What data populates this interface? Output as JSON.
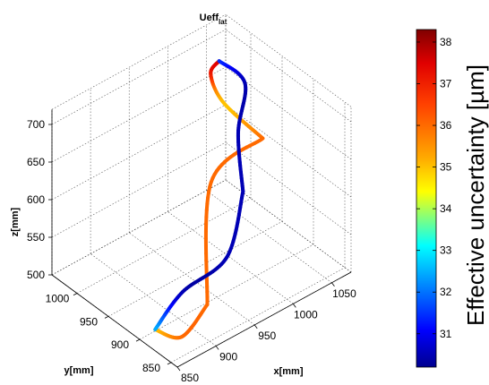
{
  "chart_data": {
    "type": "line",
    "subtype": "3d-curve",
    "title": "Ueff",
    "title_subscript": "lat",
    "xlabel": "x[mm]",
    "ylabel": "y[mm]",
    "zlabel": "z[mm]",
    "x_ticks": [
      "850",
      "900",
      "950",
      "1000",
      "1050"
    ],
    "y_ticks": [
      "850",
      "900",
      "950",
      "1000"
    ],
    "z_ticks": [
      "500",
      "550",
      "600",
      "650",
      "700"
    ],
    "xlim": [
      850,
      1075
    ],
    "ylim": [
      840,
      1040
    ],
    "zlim": [
      500,
      720
    ],
    "grid": true,
    "colorbar": {
      "label": "Effective uncertainty [µm]",
      "ticks": [
        "31",
        "32",
        "33",
        "34",
        "35",
        "36",
        "37",
        "38"
      ],
      "range": [
        30.2,
        38.3
      ],
      "colormap": "jet"
    },
    "segments": [
      {
        "name": "",
        "note": "upper arc",
        "x": [
          985,
          995,
          1015,
          1030
        ],
        "y": [
          870,
          945,
          990,
          995
        ],
        "z": [
          710,
          706,
          705,
          711
        ],
        "u": [
          36.0,
          35.0,
          37.0,
          37.5
        ]
      },
      {
        "name": "",
        "note": "orange S-curve",
        "x": [
          985,
          910,
          905
        ],
        "y": [
          870,
          860,
          860
        ],
        "z": [
          710,
          700,
          540
        ],
        "u": [
          36.0,
          36.0,
          36.0
        ]
      },
      {
        "name": "",
        "note": "lower-left arc",
        "x": [
          905,
          880,
          870
        ],
        "y": [
          860,
          870,
          900
        ],
        "z": [
          540,
          505,
          502
        ],
        "u": [
          36.0,
          36.0,
          35.0
        ]
      },
      {
        "name": "",
        "note": "blue right portion",
        "x": [
          1030,
          1035,
          1010,
          1000
        ],
        "y": [
          995,
          960,
          940,
          920
        ],
        "z": [
          711,
          700,
          660,
          600
        ],
        "u": [
          31.5,
          30.5,
          30.5,
          30.5
        ]
      },
      {
        "name": "",
        "note": "blue bottom arc",
        "x": [
          1000,
          975,
          930,
          870
        ],
        "y": [
          920,
          915,
          930,
          900
        ],
        "z": [
          600,
          530,
          500,
          502
        ],
        "u": [
          30.5,
          30.5,
          30.5,
          32.5
        ]
      }
    ]
  }
}
